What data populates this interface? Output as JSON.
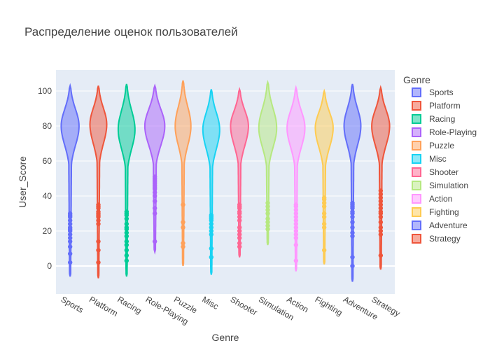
{
  "chart_data": {
    "type": "violin",
    "title": "Распределение оценок пользователей",
    "xlabel": "Genre",
    "ylabel": "User_Score",
    "ylim": [
      -16,
      112
    ],
    "yticks": [
      0,
      20,
      40,
      60,
      80,
      100
    ],
    "grid": true,
    "legend": {
      "title": "Genre",
      "placement": "right"
    },
    "series": [
      {
        "name": "Sports",
        "color": "#636efa",
        "range": [
          -6,
          103
        ],
        "peak": 80,
        "width": 0.85,
        "outliers": [
          2,
          7,
          11,
          14,
          16,
          18,
          20,
          21,
          22,
          24,
          26,
          28,
          29,
          30
        ]
      },
      {
        "name": "Platform",
        "color": "#ef553b",
        "range": [
          -7,
          103
        ],
        "peak": 81,
        "width": 0.8,
        "outliers": [
          2,
          9,
          14,
          24,
          26,
          28,
          29,
          30,
          31,
          33,
          34,
          35
        ]
      },
      {
        "name": "Racing",
        "color": "#00cc96",
        "range": [
          -6,
          104
        ],
        "peak": 78,
        "width": 0.8,
        "outliers": [
          3,
          6,
          9,
          12,
          14,
          17,
          19,
          21,
          22,
          24,
          27,
          29,
          30,
          31
        ]
      },
      {
        "name": "Role-Playing",
        "color": "#ab63fa",
        "range": [
          8,
          103
        ],
        "peak": 80,
        "width": 0.95,
        "outliers": [
          14,
          30,
          33,
          37,
          40,
          42,
          44,
          45,
          46,
          47,
          48,
          49,
          50,
          51
        ]
      },
      {
        "name": "Puzzle",
        "color": "#ffa15a",
        "range": [
          0,
          106
        ],
        "peak": 80,
        "width": 0.75,
        "outliers": [
          11,
          13,
          22,
          25,
          35
        ]
      },
      {
        "name": "Misc",
        "color": "#19d3f3",
        "range": [
          -5,
          101
        ],
        "peak": 78,
        "width": 0.8,
        "outliers": [
          5,
          10,
          18,
          20,
          22,
          24,
          26,
          27,
          28,
          29
        ]
      },
      {
        "name": "Shooter",
        "color": "#ff6692",
        "range": [
          5,
          101
        ],
        "peak": 80,
        "width": 0.85,
        "outliers": [
          11,
          13,
          16,
          18,
          20,
          22,
          26,
          28,
          30,
          31,
          33,
          34,
          35
        ]
      },
      {
        "name": "Simulation",
        "color": "#b6e880",
        "range": [
          12,
          105
        ],
        "peak": 79,
        "width": 0.85,
        "outliers": [
          21,
          23,
          25,
          27,
          30,
          32,
          34,
          36
        ]
      },
      {
        "name": "Action",
        "color": "#ff97ff",
        "range": [
          -3,
          102
        ],
        "peak": 79,
        "width": 0.85,
        "outliers": [
          3,
          12,
          16,
          18,
          20,
          22,
          24,
          26,
          28,
          30,
          32,
          34,
          35
        ]
      },
      {
        "name": "Fighting",
        "color": "#fecb52",
        "range": [
          1,
          100
        ],
        "peak": 79,
        "width": 0.85,
        "outliers": [
          9,
          22,
          24,
          28,
          30,
          34,
          36,
          38,
          39
        ]
      },
      {
        "name": "Adventure",
        "color": "#636efa",
        "range": [
          -9,
          104
        ],
        "peak": 80,
        "width": 0.8,
        "outliers": [
          0,
          5,
          17,
          19,
          22,
          25,
          28,
          30,
          31,
          33,
          34,
          35,
          36
        ]
      },
      {
        "name": "Strategy",
        "color": "#ef553b",
        "range": [
          -2,
          102
        ],
        "peak": 80,
        "width": 0.85,
        "outliers": [
          6,
          18,
          20,
          22,
          25,
          28,
          30,
          31,
          33,
          35,
          37,
          39,
          41,
          43
        ]
      }
    ]
  }
}
